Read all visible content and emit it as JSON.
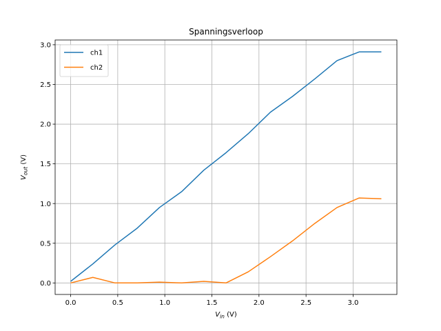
{
  "chart_data": {
    "type": "line",
    "title": "Spanningsverloop",
    "xlabel": {
      "symbol": "V",
      "subscript": "in",
      "unit": " (V)"
    },
    "ylabel": {
      "symbol": "V",
      "subscript": "out",
      "unit": " (V)"
    },
    "xlim": [
      -0.165,
      3.465
    ],
    "ylim": [
      -0.145,
      3.06
    ],
    "xticks": [
      0.0,
      0.5,
      1.0,
      1.5,
      2.0,
      2.5,
      3.0
    ],
    "xtick_labels": [
      "0.0",
      "0.5",
      "1.0",
      "1.5",
      "2.0",
      "2.5",
      "3.0"
    ],
    "yticks": [
      0.0,
      0.5,
      1.0,
      1.5,
      2.0,
      2.5,
      3.0
    ],
    "ytick_labels": [
      "0.0",
      "0.5",
      "1.0",
      "1.5",
      "2.0",
      "2.5",
      "3.0"
    ],
    "grid": true,
    "legend_position": "top-left",
    "x": [
      0.0,
      0.236,
      0.471,
      0.707,
      0.943,
      1.179,
      1.414,
      1.65,
      1.886,
      2.121,
      2.357,
      2.593,
      2.829,
      3.064,
      3.3
    ],
    "series": [
      {
        "name": "ch1",
        "color": "#1f77b4",
        "values": [
          0.02,
          0.24,
          0.48,
          0.69,
          0.95,
          1.15,
          1.42,
          1.64,
          1.88,
          2.15,
          2.35,
          2.57,
          2.8,
          2.91,
          2.91
        ]
      },
      {
        "name": "ch2",
        "color": "#ff7f0e",
        "values": [
          0.0,
          0.07,
          0.0,
          0.0,
          0.01,
          0.0,
          0.02,
          0.0,
          0.14,
          0.33,
          0.53,
          0.75,
          0.95,
          1.07,
          1.06
        ]
      }
    ]
  }
}
